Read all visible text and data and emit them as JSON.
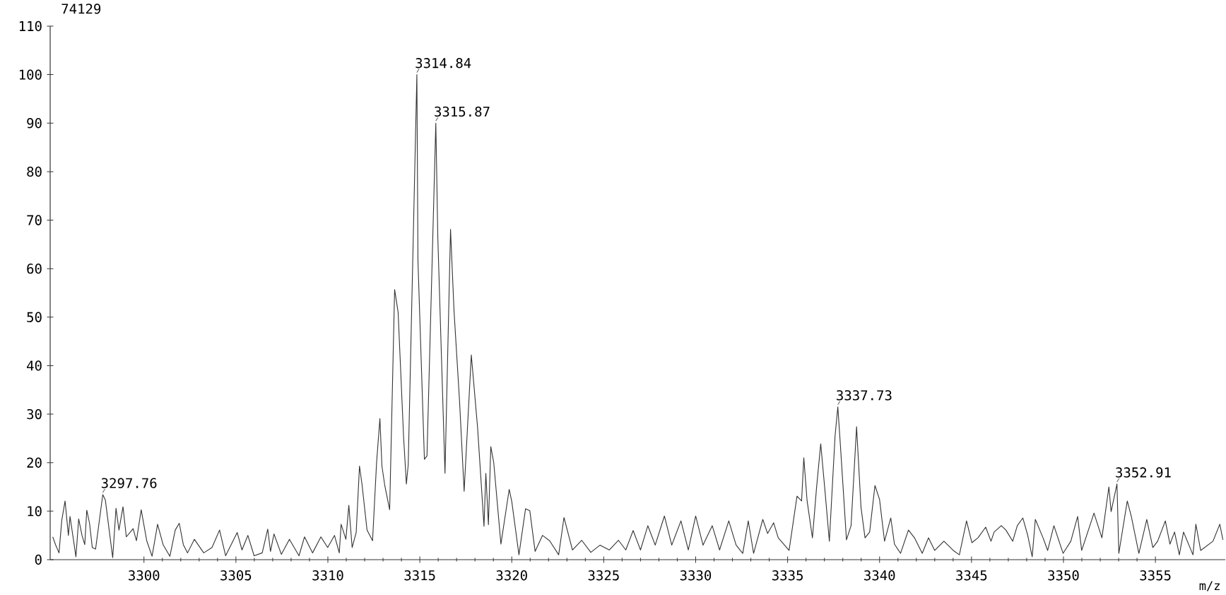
{
  "chart_data": {
    "type": "line",
    "xlabel": "m/z",
    "annotations": [
      "74129",
      {
        "text": "3297.76",
        "x": 3297.76,
        "y": 13.4
      },
      {
        "text": "3314.84",
        "x": 3314.84,
        "y": 100
      },
      {
        "text": "3315.87",
        "x": 3315.87,
        "y": 90
      },
      {
        "text": "3337.73",
        "x": 3337.73,
        "y": 31.5
      },
      {
        "text": "3352.91",
        "x": 3352.91,
        "y": 15.6
      }
    ],
    "x": [
      3295.04,
      3295.19,
      3295.38,
      3295.53,
      3295.71,
      3295.89,
      3295.98,
      3296.3,
      3296.45,
      3296.63,
      3296.78,
      3296.89,
      3297.04,
      3297.19,
      3297.37,
      3297.76,
      3297.9,
      3298.3,
      3298.48,
      3298.64,
      3298.86,
      3299.04,
      3299.41,
      3299.59,
      3299.85,
      3300.15,
      3300.44,
      3300.74,
      3301.04,
      3301.41,
      3301.7,
      3301.92,
      3302.14,
      3302.37,
      3302.74,
      3303.25,
      3303.7,
      3304.11,
      3304.44,
      3305.07,
      3305.33,
      3305.65,
      3305.99,
      3306.43,
      3306.73,
      3306.88,
      3307.07,
      3307.47,
      3307.91,
      3308.43,
      3308.73,
      3309.17,
      3309.62,
      3309.99,
      3310.36,
      3310.62,
      3310.72,
      3310.98,
      3311.14,
      3311.32,
      3311.54,
      3311.72,
      3311.86,
      3312.13,
      3312.43,
      3312.65,
      3312.83,
      3312.94,
      3313.09,
      3313.36,
      3313.63,
      3313.82,
      3314.12,
      3314.27,
      3314.37,
      3314.84,
      3314.9,
      3315.25,
      3315.39,
      3315.87,
      3315.98,
      3316.37,
      3316.67,
      3316.86,
      3317.16,
      3317.41,
      3317.8,
      3318.14,
      3318.49,
      3318.59,
      3318.73,
      3318.86,
      3319.02,
      3319.41,
      3319.86,
      3320.0,
      3320.39,
      3320.75,
      3320.98,
      3321.27,
      3321.67,
      3322.06,
      3322.55,
      3322.84,
      3323.3,
      3323.8,
      3324.3,
      3324.8,
      3325.3,
      3325.8,
      3326.2,
      3326.6,
      3327.0,
      3327.4,
      3327.8,
      3328.3,
      3328.7,
      3329.2,
      3329.6,
      3330.0,
      3330.4,
      3330.9,
      3331.3,
      3331.8,
      3332.2,
      3332.56,
      3332.86,
      3333.15,
      3333.65,
      3333.91,
      3334.24,
      3334.49,
      3335.08,
      3335.51,
      3335.76,
      3335.88,
      3336.06,
      3336.35,
      3336.57,
      3336.8,
      3337.02,
      3337.27,
      3337.58,
      3337.73,
      3337.86,
      3338.2,
      3338.45,
      3338.75,
      3338.99,
      3339.21,
      3339.46,
      3339.75,
      3340.0,
      3340.27,
      3340.61,
      3340.81,
      3341.14,
      3341.57,
      3341.9,
      3342.32,
      3342.66,
      3343.0,
      3343.5,
      3344.01,
      3344.34,
      3344.73,
      3345.02,
      3345.35,
      3345.77,
      3346.06,
      3346.23,
      3346.62,
      3346.87,
      3347.24,
      3347.49,
      3347.79,
      3348.05,
      3348.3,
      3348.47,
      3348.89,
      3349.14,
      3349.48,
      3349.98,
      3350.4,
      3350.77,
      3350.99,
      3351.66,
      3352.09,
      3352.47,
      3352.59,
      3352.91,
      3353.01,
      3353.47,
      3353.69,
      3354.1,
      3354.53,
      3354.86,
      3355.12,
      3355.54,
      3355.79,
      3356.04,
      3356.3,
      3356.53,
      3357.04,
      3357.2,
      3357.46,
      3358.13,
      3358.5,
      3358.67
    ],
    "values": [
      4.7,
      3.1,
      1.4,
      8.1,
      12.1,
      5,
      8.9,
      0.6,
      8.4,
      5,
      3.1,
      10.2,
      7.5,
      2.5,
      2.2,
      13.4,
      12.3,
      0.4,
      10.6,
      6.1,
      10.9,
      4.7,
      6.4,
      3.9,
      10.3,
      3.9,
      0.7,
      7.3,
      3.1,
      0.7,
      6.1,
      7.5,
      3.1,
      1.4,
      4.2,
      1.4,
      2.5,
      6.1,
      0.8,
      5.6,
      2.0,
      5.0,
      0.8,
      1.4,
      6.3,
      1.7,
      5.3,
      1.1,
      4.2,
      0.8,
      4.7,
      1.4,
      4.7,
      2.5,
      5.0,
      1.4,
      7.3,
      4.2,
      11.2,
      2.5,
      5.6,
      19.3,
      15.4,
      6.1,
      3.9,
      20.1,
      29.1,
      19.3,
      15.4,
      10.3,
      55.7,
      51,
      25.1,
      15.6,
      19.6,
      100,
      61.5,
      20.7,
      21.4,
      90,
      66.3,
      17.8,
      68.1,
      51.3,
      32.7,
      14.1,
      42.2,
      27.3,
      6.9,
      17.8,
      7.2,
      23.3,
      20,
      3.2,
      14.5,
      12,
      1,
      10.5,
      10.1,
      1.7,
      5,
      3.9,
      1,
      8.7,
      2,
      4,
      1.5,
      3,
      2,
      4,
      2,
      6,
      2,
      7,
      3,
      9,
      3,
      8,
      2,
      9,
      3,
      7,
      2,
      8,
      3,
      1.3,
      8,
      1.3,
      8.3,
      5.4,
      7.6,
      4.5,
      1.9,
      13.1,
      12.1,
      21,
      12.1,
      4.5,
      14.7,
      23.9,
      14.7,
      3.8,
      25.5,
      31.5,
      24.2,
      4.1,
      7,
      27.4,
      10.8,
      4.5,
      5.7,
      15.3,
      12.4,
      3.8,
      8.6,
      3.2,
      1.3,
      6.1,
      4.5,
      1.3,
      4.5,
      1.9,
      3.8,
      1.9,
      1,
      8,
      3.5,
      4.5,
      6.7,
      3.8,
      5.7,
      7,
      6.1,
      3.8,
      7,
      8.6,
      5.1,
      0.6,
      8.3,
      4.5,
      1.9,
      7,
      1.3,
      3.8,
      8.9,
      1.9,
      9.6,
      4.5,
      15,
      9.9,
      15.6,
      1.3,
      12.1,
      8.9,
      1.3,
      8.3,
      2.5,
      3.8,
      8,
      3.2,
      5.7,
      1,
      5.7,
      1,
      7.3,
      1.9,
      3.8,
      7.3,
      4.1
    ],
    "color": "#333333",
    "marker": "none",
    "line_style": "solid",
    "grid": false,
    "xlim": [
      3294.9,
      3358.8
    ],
    "ylim": [
      0,
      110
    ],
    "xticks": [
      3300,
      3305,
      3310,
      3315,
      3320,
      3325,
      3330,
      3335,
      3340,
      3345,
      3350,
      3355
    ],
    "yticks": [
      0,
      10,
      20,
      30,
      40,
      50,
      60,
      70,
      80,
      90,
      100,
      110
    ]
  }
}
